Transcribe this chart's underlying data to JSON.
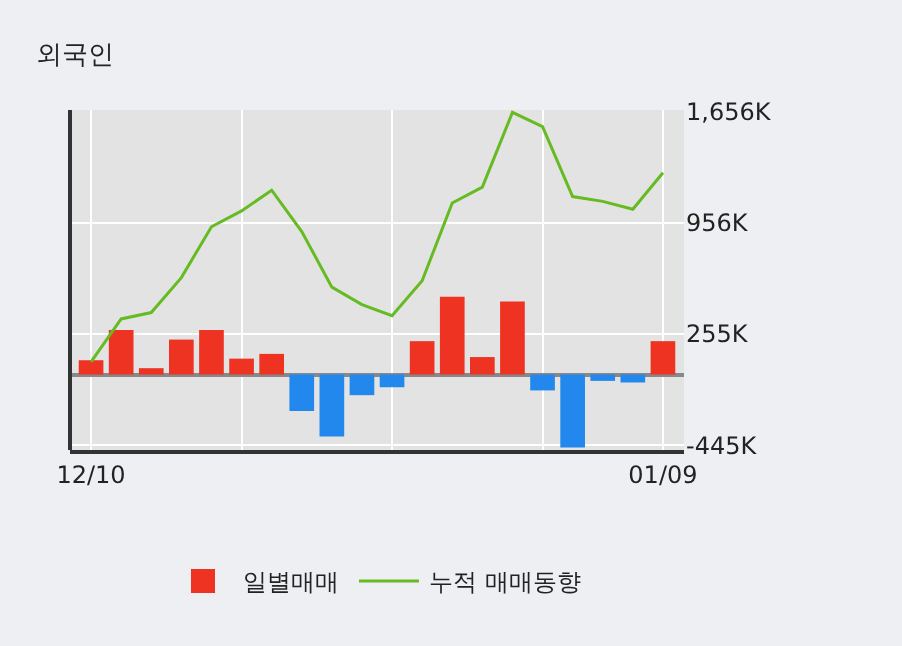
{
  "chart_data": {
    "type": "bar",
    "title": "외국인",
    "categories": [
      "12/10",
      null,
      null,
      null,
      null,
      null,
      null,
      null,
      null,
      null,
      null,
      null,
      null,
      null,
      null,
      null,
      null,
      null,
      null,
      "01/09"
    ],
    "series": [
      {
        "name": "일별매매",
        "colors": [
          "#ee3322",
          "#ee3322",
          "#ee3322",
          "#ee3322",
          "#ee3322",
          "#ee3322",
          "#ee3322",
          "#2288ee",
          "#2288ee",
          "#2288ee",
          "#2288ee",
          "#ee3322",
          "#ee3322",
          "#ee3322",
          "#ee3322",
          "#2288ee",
          "#2288ee",
          "#2288ee",
          "#2288ee",
          "#ee3322"
        ],
        "values": [
          90,
          280,
          40,
          220,
          280,
          100,
          130,
          -230,
          -390,
          -130,
          -80,
          210,
          490,
          110,
          460,
          -100,
          -460,
          -40,
          -50,
          210
        ]
      },
      {
        "name": "누적 매매동향",
        "type": "line",
        "color": "#66bb22",
        "values": [
          80,
          350,
          390,
          610,
          930,
          1030,
          1160,
          900,
          550,
          440,
          370,
          590,
          1080,
          1180,
          1650,
          1560,
          1120,
          1090,
          1040,
          1270
        ]
      }
    ],
    "ylim": [
      -475,
      1665
    ],
    "yticks": [
      {
        "value": -445,
        "label": "-445K"
      },
      {
        "value": 255,
        "label": "255K"
      },
      {
        "value": 956,
        "label": "956K"
      },
      {
        "value": 1656,
        "label": "1,656K"
      }
    ],
    "grid": true,
    "legend": "bottom",
    "marker": "none",
    "line_style": "solid"
  }
}
